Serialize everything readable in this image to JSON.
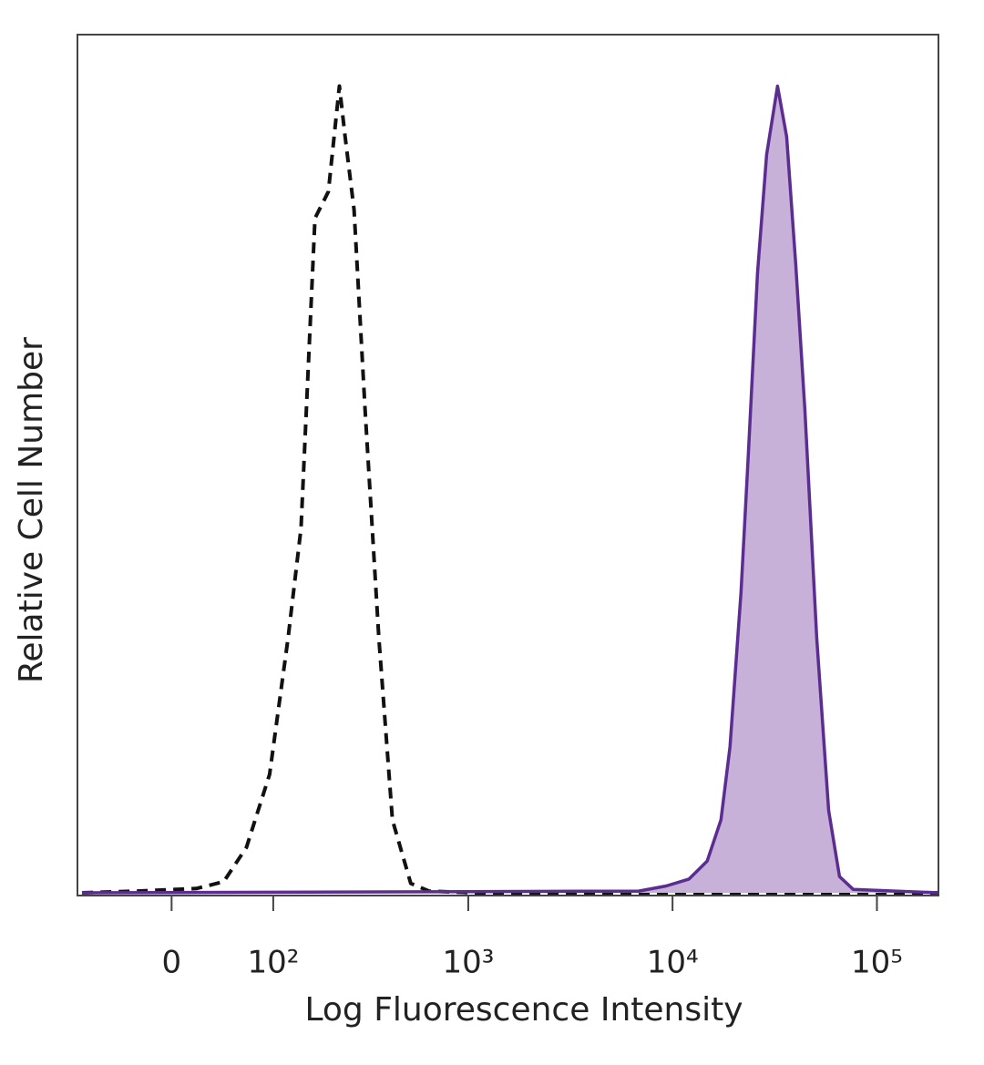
{
  "chart_data": {
    "type": "line",
    "x_label": "Log Fluorescence Intensity",
    "y_label": "Relative Cell Number",
    "xscale": "biexponential",
    "xlim": [
      -90,
      200000
    ],
    "xticks": [
      0,
      {
        "value": 100,
        "label": "10²"
      },
      {
        "value": 1000,
        "label": "10³"
      },
      {
        "value": 10000,
        "label": "10⁴"
      },
      {
        "value": 100000,
        "label": "10⁵"
      }
    ],
    "ylim": [
      0,
      100
    ],
    "series": [
      {
        "color": "#111111",
        "dash": true,
        "fill": null,
        "x": [
          -84,
          -28,
          20,
          44,
          67,
          95,
          122,
          144,
          171,
          201,
          229,
          245,
          272,
          309,
          362,
          423,
          521,
          641,
          1074,
          200000
        ],
        "values": [
          0,
          0.2,
          0.5,
          1.3,
          5.3,
          13.8,
          29.7,
          42.5,
          78.6,
          81.7,
          94,
          88.1,
          79.6,
          56.3,
          29.7,
          8.5,
          1.1,
          0.2,
          0,
          0
        ]
      },
      {
        "color": "#5b2d91",
        "dash": false,
        "fill": "#c8b1d8",
        "x": [
          -84,
          6830,
          9310,
          12040,
          14780,
          17250,
          19100,
          21630,
          23480,
          26030,
          28850,
          32630,
          36180,
          40070,
          44390,
          50760,
          58060,
          65630,
          76530,
          200000
        ],
        "values": [
          0,
          0.2,
          0.8,
          1.6,
          3.7,
          8.5,
          17,
          35,
          51,
          72.2,
          86,
          94,
          88.1,
          73.2,
          56.3,
          29.7,
          9.6,
          1.9,
          0.4,
          0
        ]
      }
    ]
  }
}
